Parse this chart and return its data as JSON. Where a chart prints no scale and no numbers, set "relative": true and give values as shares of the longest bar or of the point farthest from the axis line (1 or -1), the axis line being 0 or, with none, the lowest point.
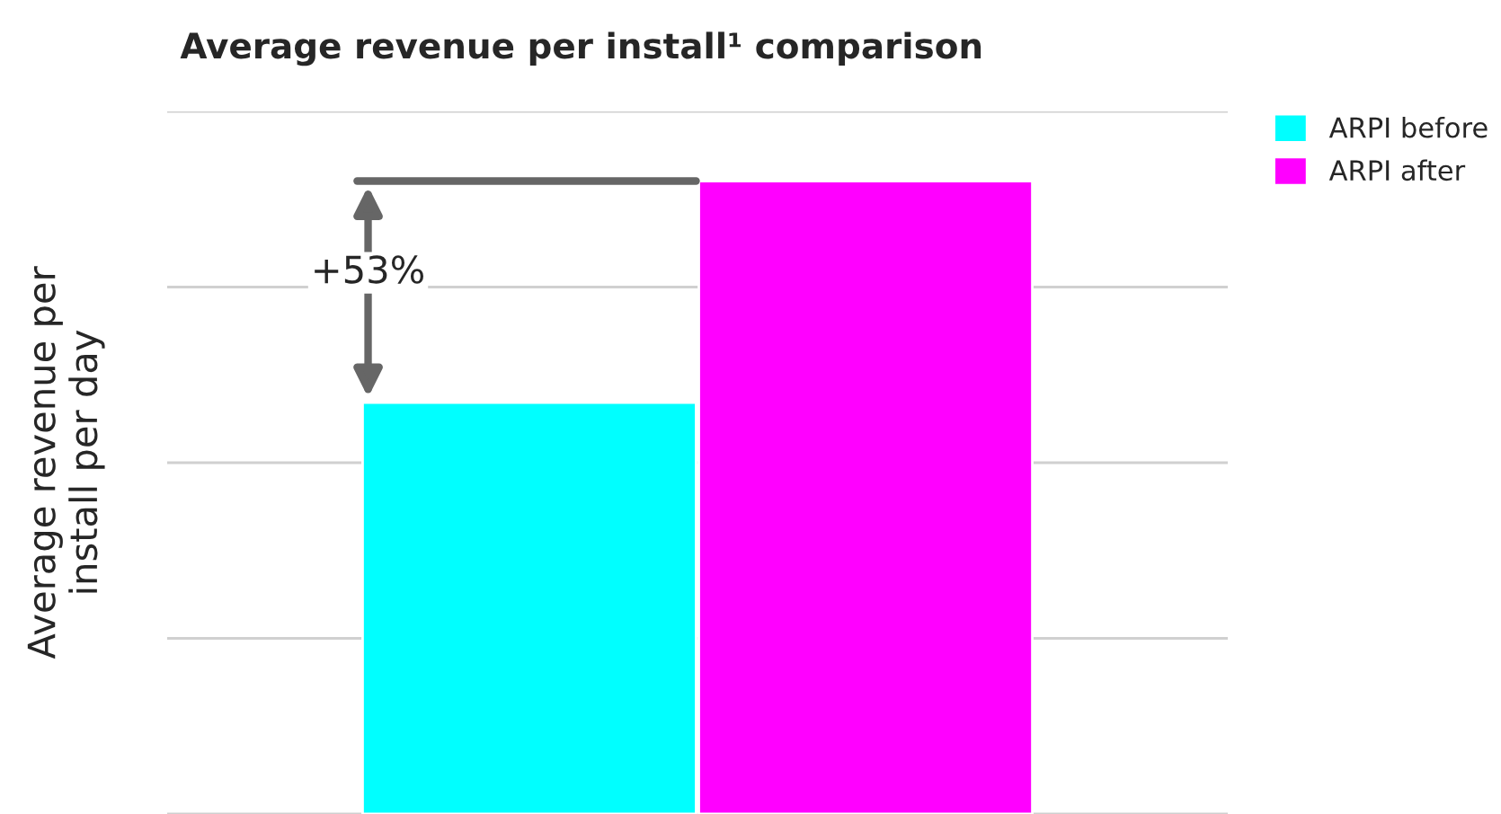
{
  "chart_data": {
    "type": "bar",
    "title": "Average revenue per install¹ comparison",
    "ylabel": "Average revenue per install per day",
    "categories": [
      null
    ],
    "relative": true,
    "series": [
      {
        "name": "ARPI before",
        "color": "#00ffff",
        "values": [
          0.65
        ]
      },
      {
        "name": "ARPI after",
        "color": "#ff00ff",
        "values": [
          1
        ]
      }
    ],
    "ref_lines": [
      {
        "axis": "y",
        "value": 1,
        "color": "#666666"
      }
    ],
    "annotations": [
      "+53%"
    ],
    "grid": "y",
    "legend": "top right"
  }
}
